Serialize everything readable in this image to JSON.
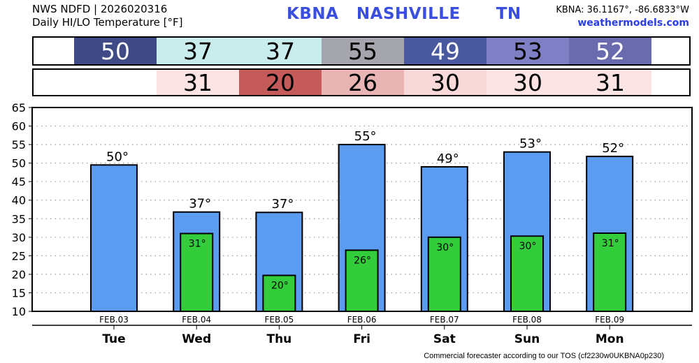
{
  "header": {
    "line1": "NWS NDFD | 2026020316",
    "line2": "Daily HI/LO Temperature [°F]",
    "station": "KBNA   NASHVILLE      TN",
    "coords": "KBNA: 36.1167°, -86.6833°W",
    "site": "weathermodels.com"
  },
  "hi_row": [
    {
      "value": "50",
      "bg": "#3f4a86",
      "fg": "#ffffff"
    },
    {
      "value": "37",
      "bg": "#c9ecec",
      "fg": "#000000"
    },
    {
      "value": "37",
      "bg": "#c9ecec",
      "fg": "#000000"
    },
    {
      "value": "55",
      "bg": "#a5a5ad",
      "fg": "#000000"
    },
    {
      "value": "49",
      "bg": "#4a58a0",
      "fg": "#ffffff"
    },
    {
      "value": "53",
      "bg": "#7f7fc6",
      "fg": "#000000"
    },
    {
      "value": "52",
      "bg": "#6a6aae",
      "fg": "#ffffff"
    }
  ],
  "lo_row": [
    {
      "value": "",
      "bg": "#ffffff",
      "fg": "#000000"
    },
    {
      "value": "31",
      "bg": "#fde4e4",
      "fg": "#000000"
    },
    {
      "value": "20",
      "bg": "#c55a5a",
      "fg": "#000000"
    },
    {
      "value": "26",
      "bg": "#e8b4b4",
      "fg": "#000000"
    },
    {
      "value": "30",
      "bg": "#f8d8d8",
      "fg": "#000000"
    },
    {
      "value": "30",
      "bg": "#fde4e4",
      "fg": "#000000"
    },
    {
      "value": "31",
      "bg": "#fde4e4",
      "fg": "#000000"
    }
  ],
  "chart_data": {
    "type": "bar",
    "categories": [
      "Tue",
      "Wed",
      "Thu",
      "Fri",
      "Sat",
      "Sun",
      "Mon"
    ],
    "dates": [
      "FEB.03",
      "FEB.04",
      "FEB.05",
      "FEB.06",
      "FEB.07",
      "FEB.08",
      "FEB.09"
    ],
    "series": [
      {
        "values": [
          49.5,
          36.8,
          36.7,
          55.0,
          49.0,
          53.0,
          51.8
        ],
        "labels": [
          "50°",
          "37°",
          "37°",
          "55°",
          "49°",
          "53°",
          "52°"
        ],
        "color": "#5b9cf0"
      },
      {
        "values": [
          null,
          31.0,
          19.7,
          26.5,
          30.0,
          30.3,
          31.1
        ],
        "labels": [
          "",
          "31°",
          "20°",
          "26°",
          "30°",
          "30°",
          "31°"
        ],
        "color": "#33cc3a"
      }
    ],
    "yticks": [
      "10",
      "15",
      "20",
      "25",
      "30",
      "35",
      "40",
      "45",
      "50",
      "55",
      "60",
      "65"
    ],
    "ylim": [
      10,
      65
    ],
    "grid": true
  },
  "footer": "Commercial forecaster according to our TOS (cf2230w0UKBNA0p230)"
}
